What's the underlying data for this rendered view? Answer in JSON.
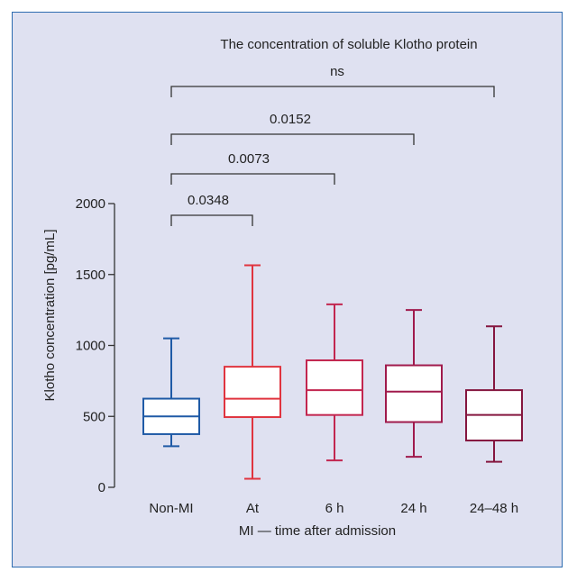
{
  "chart_data": {
    "type": "box",
    "title": "The concentration of soluble Klotho protein",
    "xlabel": "MI — time after admission",
    "ylabel": "Klotho concentration [pg/mL]",
    "ylim": [
      0,
      2000
    ],
    "yticks": [
      0,
      500,
      1000,
      1500,
      2000
    ],
    "categories": [
      "Non-MI",
      "At",
      "6 h",
      "24 h",
      "24–48 h"
    ],
    "boxes": [
      {
        "name": "Non-MI",
        "min": 290,
        "q1": 375,
        "median": 500,
        "q3": 625,
        "max": 1050,
        "color": "#1f5aa6"
      },
      {
        "name": "At",
        "min": 60,
        "q1": 495,
        "median": 625,
        "q3": 850,
        "max": 1565,
        "color": "#e0343f"
      },
      {
        "name": "6 h",
        "min": 190,
        "q1": 510,
        "median": 685,
        "q3": 895,
        "max": 1290,
        "color": "#c2264f"
      },
      {
        "name": "24 h",
        "min": 215,
        "q1": 460,
        "median": 675,
        "q3": 860,
        "max": 1250,
        "color": "#a01a4c"
      },
      {
        "name": "24–48 h",
        "min": 180,
        "q1": 330,
        "median": 510,
        "q3": 685,
        "max": 1135,
        "color": "#85163f"
      }
    ],
    "comparisons": [
      {
        "from": 0,
        "to": 4,
        "label": "ns"
      },
      {
        "from": 0,
        "to": 3,
        "label": "0.0152"
      },
      {
        "from": 0,
        "to": 2,
        "label": "0.0073"
      },
      {
        "from": 0,
        "to": 1,
        "label": "0.0348"
      }
    ]
  }
}
